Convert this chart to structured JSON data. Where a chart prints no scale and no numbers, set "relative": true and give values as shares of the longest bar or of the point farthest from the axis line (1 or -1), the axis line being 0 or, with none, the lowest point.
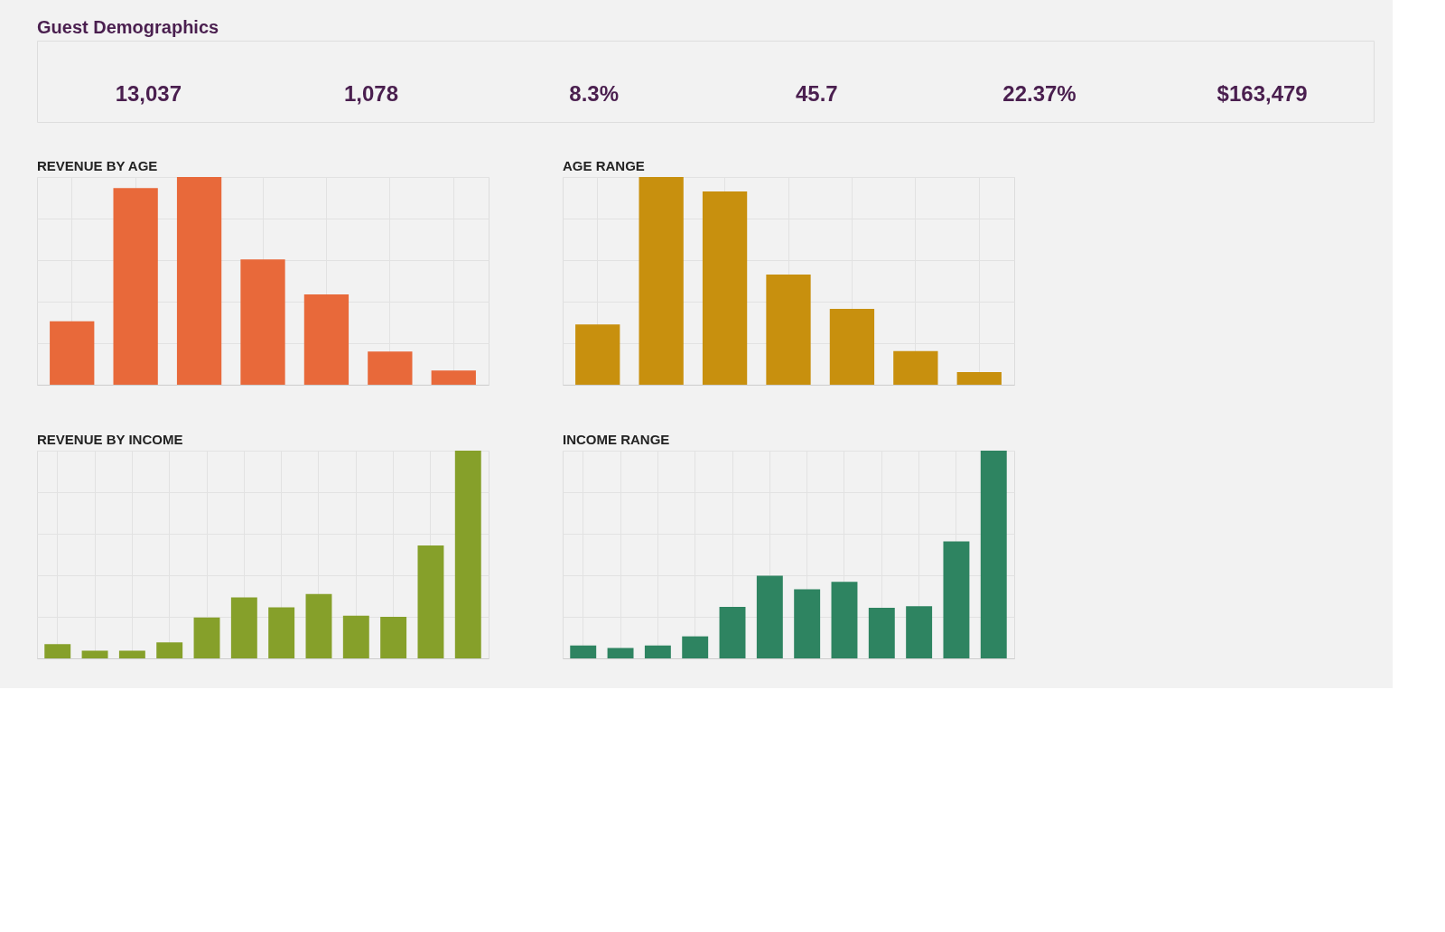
{
  "chart_data": [
    {
      "type": "other",
      "title": "Guest Demographics",
      "annotations": [
        "13,037",
        "1,078",
        "8.3%",
        "45.7",
        "22.37%",
        "$163,479"
      ]
    },
    {
      "type": "bar",
      "title": "REVENUE BY AGE",
      "relative": true,
      "grid": true,
      "color": "#e8693a",
      "categories": [
        null,
        null,
        null,
        null,
        null,
        null,
        null
      ],
      "values": [
        0.305,
        0.947,
        1.0,
        0.603,
        0.435,
        0.16,
        0.069
      ]
    },
    {
      "type": "bar",
      "title": "AGE RANGE",
      "relative": true,
      "grid": true,
      "color": "#c8900e",
      "categories": [
        null,
        null,
        null,
        null,
        null,
        null,
        null
      ],
      "values": [
        0.29,
        1.0,
        0.93,
        0.53,
        0.365,
        0.162,
        0.061
      ]
    },
    {
      "type": "bar",
      "title": "REVENUE BY INCOME",
      "relative": true,
      "grid": true,
      "color": "#86a02a",
      "categories": [
        null,
        null,
        null,
        null,
        null,
        null,
        null,
        null,
        null,
        null,
        null,
        null
      ],
      "values": [
        0.069,
        0.037,
        0.037,
        0.077,
        0.197,
        0.294,
        0.246,
        0.31,
        0.205,
        0.2,
        0.543,
        1.0
      ]
    },
    {
      "type": "bar",
      "title": "INCOME RANGE",
      "relative": true,
      "grid": true,
      "color": "#2e8461",
      "categories": [
        null,
        null,
        null,
        null,
        null,
        null,
        null,
        null,
        null,
        null,
        null,
        null
      ],
      "values": [
        0.062,
        0.05,
        0.062,
        0.106,
        0.248,
        0.398,
        0.333,
        0.368,
        0.244,
        0.251,
        0.563,
        1.0
      ]
    }
  ]
}
